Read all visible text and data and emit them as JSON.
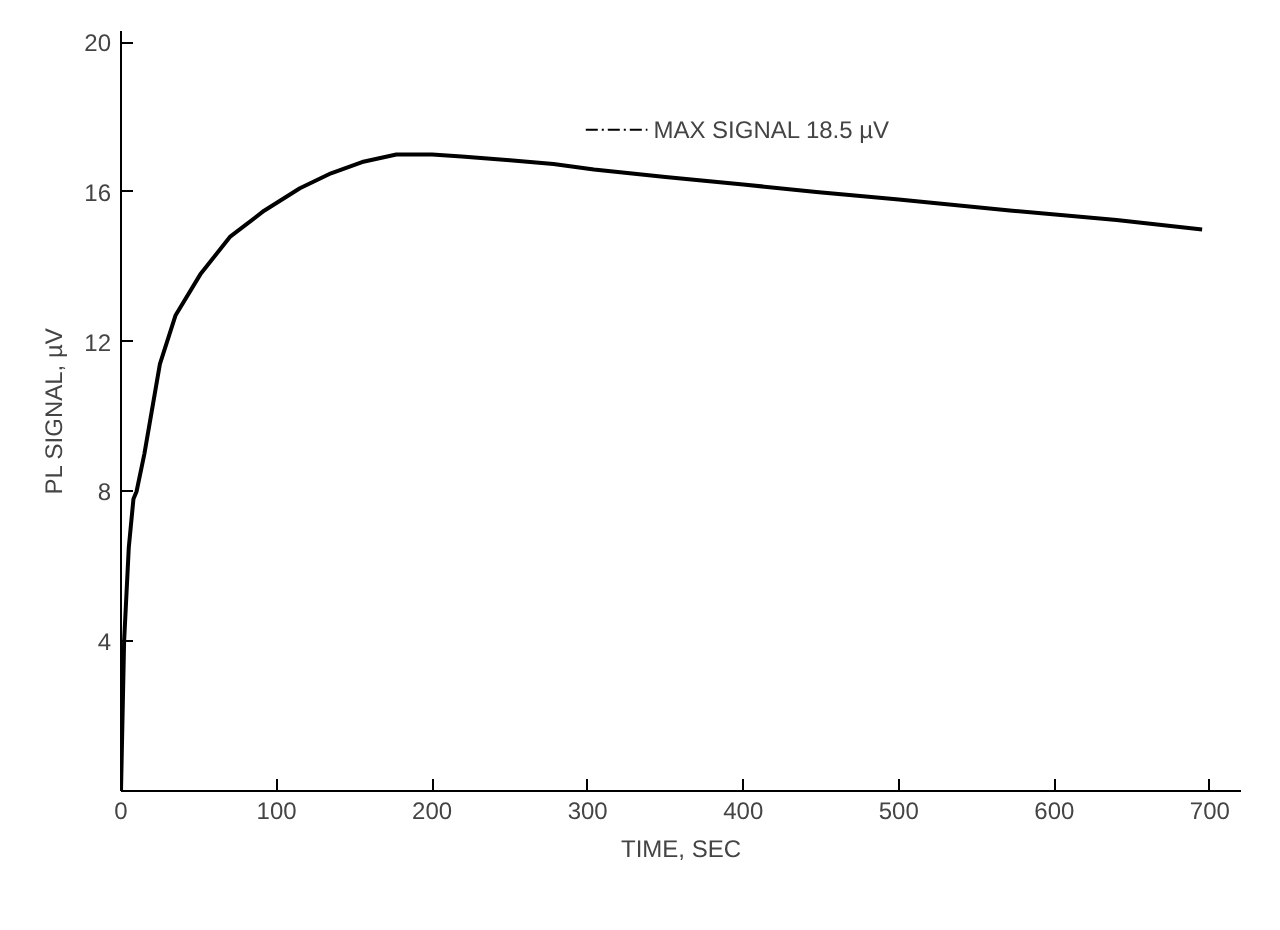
{
  "chart_data": {
    "type": "line",
    "xlabel": "TIME, SEC",
    "ylabel": "PL SIGNAL, µV",
    "x": [
      0,
      2,
      5,
      8,
      10,
      15,
      25,
      35,
      51,
      70,
      92,
      115,
      135,
      155,
      177,
      200,
      219,
      250,
      278,
      304,
      350,
      400,
      447,
      500,
      573,
      640,
      695
    ],
    "series": [
      {
        "color": "#000000",
        "values": [
          0,
          4,
          6.5,
          7.8,
          8.0,
          9.0,
          11.4,
          12.7,
          13.8,
          14.8,
          15.5,
          16.1,
          16.5,
          16.8,
          17.0,
          17.0,
          16.95,
          16.85,
          16.75,
          16.6,
          16.4,
          16.2,
          16.0,
          15.8,
          15.5,
          15.25,
          15.0
        ]
      }
    ],
    "annotations": [
      "MAX SIGNAL 18.5 µV"
    ],
    "xlim": [
      0,
      720
    ],
    "ylim": [
      0,
      20.3
    ],
    "xticks": [
      0,
      100,
      200,
      300,
      400,
      500,
      600,
      700
    ],
    "yticks": [
      4,
      8,
      12,
      16,
      20
    ],
    "grid": false,
    "marker": "none",
    "line_style": "solid"
  }
}
